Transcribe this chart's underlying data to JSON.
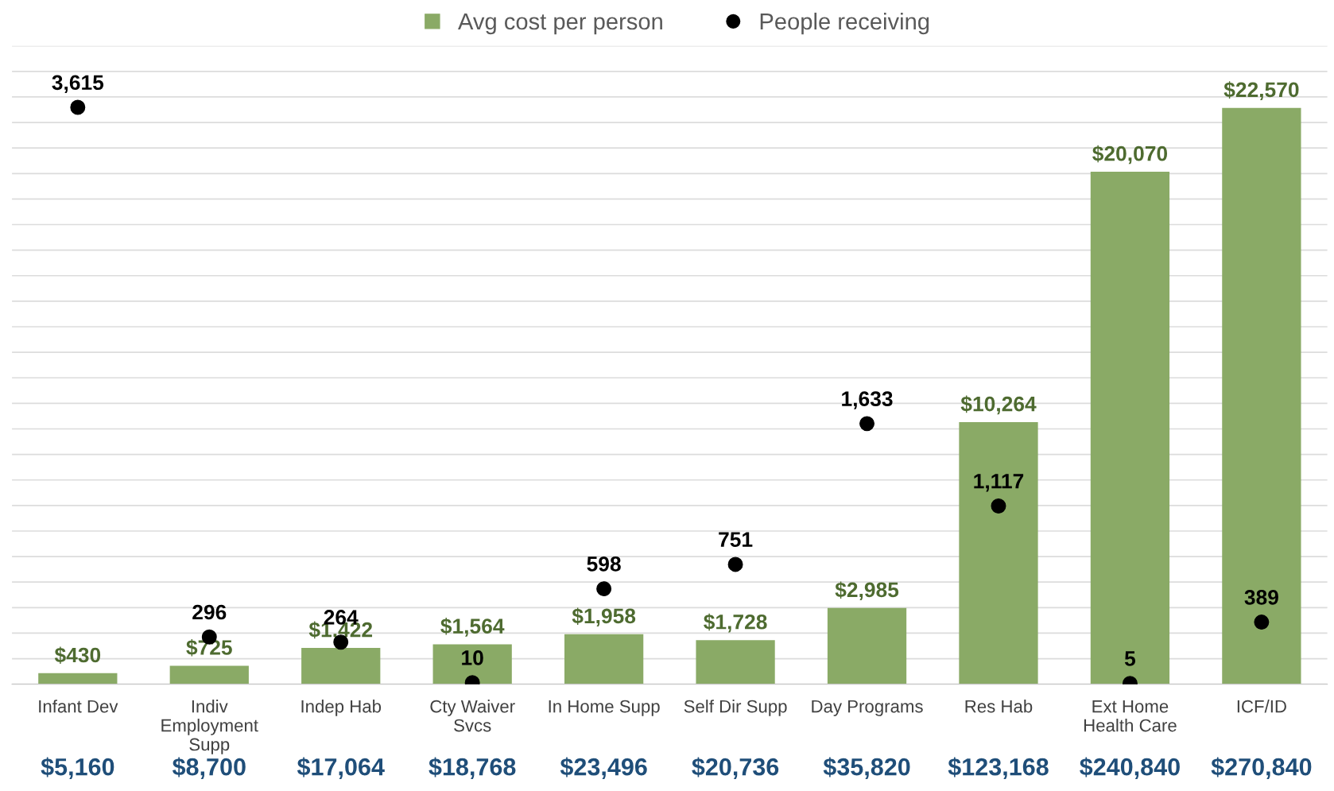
{
  "chart_data": {
    "type": "bar",
    "categories": [
      "Infant Dev",
      "Indiv\nEmployment\nSupp",
      "Indep Hab",
      "Cty Waiver\nSvcs",
      "In Home Supp",
      "Self Dir Supp",
      "Day Programs",
      "Res Hab",
      "Ext Home\nHealth Care",
      "ICF/ID"
    ],
    "series": [
      {
        "name": "Avg cost per person",
        "color": "#8aaa66",
        "values": [
          430,
          725,
          1422,
          1564,
          1958,
          1728,
          2985,
          10264,
          20070,
          22570
        ],
        "value_labels": [
          "$430",
          "$725",
          "$1,422",
          "$1,564",
          "$1,958",
          "$1,728",
          "$2,985",
          "$10,264",
          "$20,070",
          "$22,570"
        ]
      },
      {
        "name": "People receiving",
        "type": "scatter",
        "axis": "y2",
        "color": "#000000",
        "values": [
          3615,
          296,
          264,
          10,
          598,
          751,
          1633,
          1117,
          5,
          389
        ],
        "value_labels": [
          "3,615",
          "296",
          "264",
          "10",
          "598",
          "751",
          "1,633",
          "1,117",
          "5",
          "389"
        ]
      }
    ],
    "ylim": [
      0,
      25000
    ],
    "yticks": [
      {
        "value": 0,
        "label": null
      },
      {
        "value": 1000,
        "label": null
      },
      {
        "value": 2000,
        "label": null
      },
      {
        "value": 3000,
        "label": null
      },
      {
        "value": 4000,
        "label": null
      },
      {
        "value": 5000,
        "label": null
      },
      {
        "value": 6000,
        "label": null
      },
      {
        "value": 7000,
        "label": null
      },
      {
        "value": 8000,
        "label": null
      },
      {
        "value": 9000,
        "label": null
      },
      {
        "value": 10000,
        "label": null
      },
      {
        "value": 11000,
        "label": null
      },
      {
        "value": 12000,
        "label": null
      },
      {
        "value": 13000,
        "label": null
      },
      {
        "value": 14000,
        "label": null
      },
      {
        "value": 15000,
        "label": null
      },
      {
        "value": 16000,
        "label": null
      },
      {
        "value": 17000,
        "label": null
      },
      {
        "value": 18000,
        "label": null
      },
      {
        "value": 19000,
        "label": null
      },
      {
        "value": 20000,
        "label": null
      },
      {
        "value": 21000,
        "label": null
      },
      {
        "value": 22000,
        "label": null
      },
      {
        "value": 23000,
        "label": null
      },
      {
        "value": 24000,
        "label": null
      },
      {
        "value": 25000,
        "label": null
      }
    ],
    "y2lim": [
      0,
      4000
    ],
    "tick_labels": "x",
    "grid": "y",
    "legend": "top",
    "marker": "circle",
    "annotations": [
      "$5,160",
      "$8,700",
      "$17,064",
      "$18,768",
      "$23,496",
      "$20,736",
      "$35,820",
      "$123,168",
      "$240,840",
      "$270,840"
    ]
  }
}
